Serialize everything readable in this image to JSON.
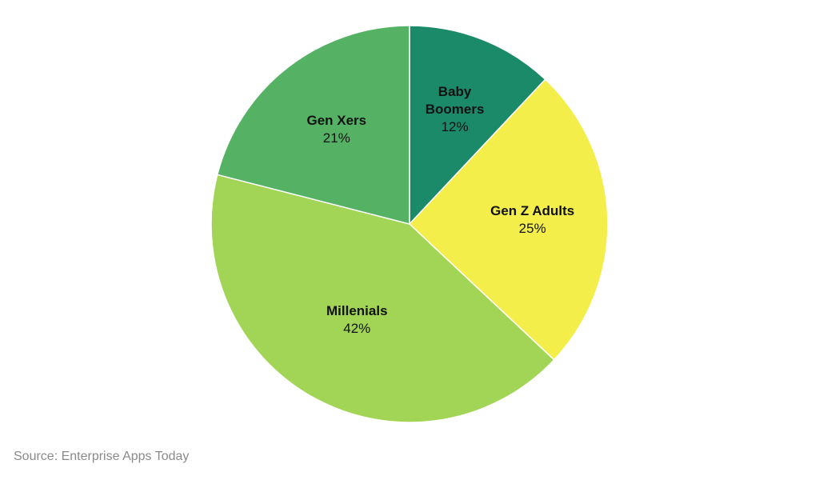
{
  "chart_data": {
    "type": "pie",
    "title": "",
    "start_angle_deg": 0,
    "direction": "clockwise",
    "slices": [
      {
        "label": "Baby Boomers",
        "label_lines": [
          "Baby",
          "Boomers"
        ],
        "value": 12,
        "display": "12%",
        "color": "#1a8a68"
      },
      {
        "label": "Gen Z Adults",
        "label_lines": [
          "Gen Z Adults"
        ],
        "value": 25,
        "display": "25%",
        "color": "#f4ee4a"
      },
      {
        "label": "Millenials",
        "label_lines": [
          "Millenials"
        ],
        "value": 42,
        "display": "42%",
        "color": "#a2d455"
      },
      {
        "label": "Gen Xers",
        "label_lines": [
          "Gen Xers"
        ],
        "value": 21,
        "display": "21%",
        "color": "#55b264"
      }
    ]
  },
  "source": "Source: Enterprise Apps Today"
}
